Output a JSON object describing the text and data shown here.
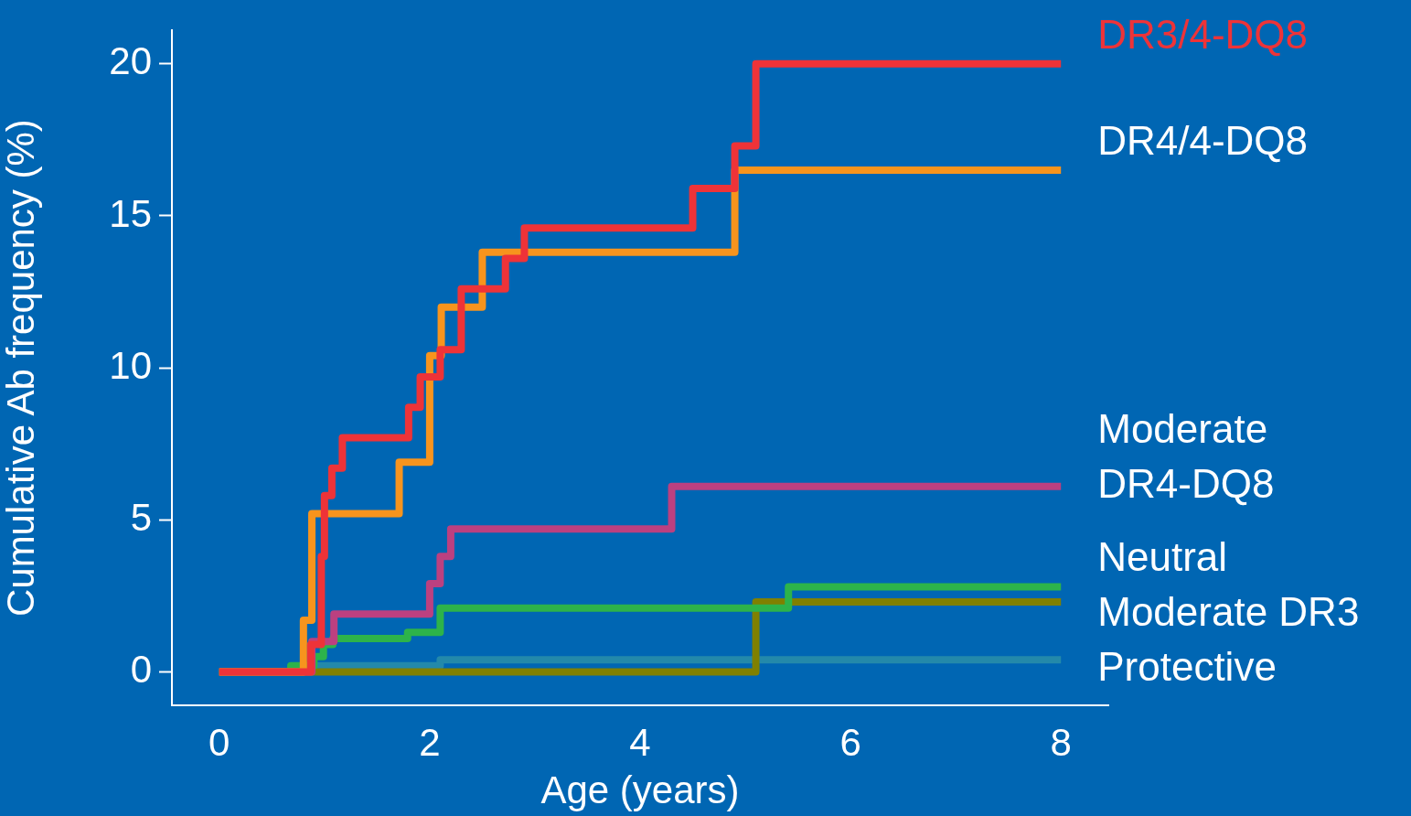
{
  "chart_data": {
    "type": "step",
    "xlabel": "Age (years)",
    "ylabel": "Cumulative Ab frequency (%)",
    "xlim": [
      -0.45,
      8.45
    ],
    "xticks": [
      0,
      2,
      4,
      6,
      8
    ],
    "ylim": [
      -1.1,
      21.1
    ],
    "yticks": [
      0,
      5,
      10,
      15,
      20
    ],
    "grid": false,
    "legend": false,
    "series": [
      {
        "name": "DR3/4-DQ8",
        "color": "#ee3338",
        "x": [
          0,
          0.87,
          0.97,
          1.0,
          1.07,
          1.17,
          1.8,
          1.91,
          2.1,
          2.3,
          2.72,
          2.9,
          4.5,
          4.9,
          5.1,
          8
        ],
        "values": [
          0,
          0.9,
          3.8,
          5.8,
          6.7,
          7.7,
          8.7,
          9.7,
          10.6,
          12.6,
          13.6,
          14.6,
          15.9,
          17.3,
          20,
          20
        ]
      },
      {
        "name": "DR4/4-DQ8",
        "color": "#f7941d",
        "x": [
          0,
          0.8,
          0.88,
          1.71,
          2.0,
          2.11,
          2.5,
          4.9,
          8
        ],
        "values": [
          0,
          1.7,
          5.2,
          6.9,
          10.4,
          12.0,
          13.8,
          16.5,
          16.5
        ]
      },
      {
        "name": "Moderate DR4-DQ8",
        "color": "#bc4080",
        "x": [
          0,
          0.88,
          1.09,
          2.0,
          2.1,
          2.2,
          4.3,
          8
        ],
        "values": [
          0,
          1.0,
          1.9,
          2.9,
          3.8,
          4.7,
          6.1,
          6.1
        ]
      },
      {
        "name": "Neutral",
        "color": "#2db34a",
        "x": [
          0,
          0.68,
          0.9,
          0.99,
          1.08,
          1.79,
          2.1,
          5.41,
          8
        ],
        "values": [
          0,
          0.2,
          0.5,
          0.9,
          1.1,
          1.3,
          2.1,
          2.8,
          2.8
        ]
      },
      {
        "name": "Moderate DR3",
        "color": "#808000",
        "x": [
          0,
          5.1,
          8
        ],
        "values": [
          0,
          2.3,
          2.3
        ]
      },
      {
        "name": "Protective",
        "color": "#2389aa",
        "x": [
          0,
          0.88,
          2.1,
          8
        ],
        "values": [
          0,
          0.2,
          0.4,
          0.4
        ]
      }
    ]
  }
}
